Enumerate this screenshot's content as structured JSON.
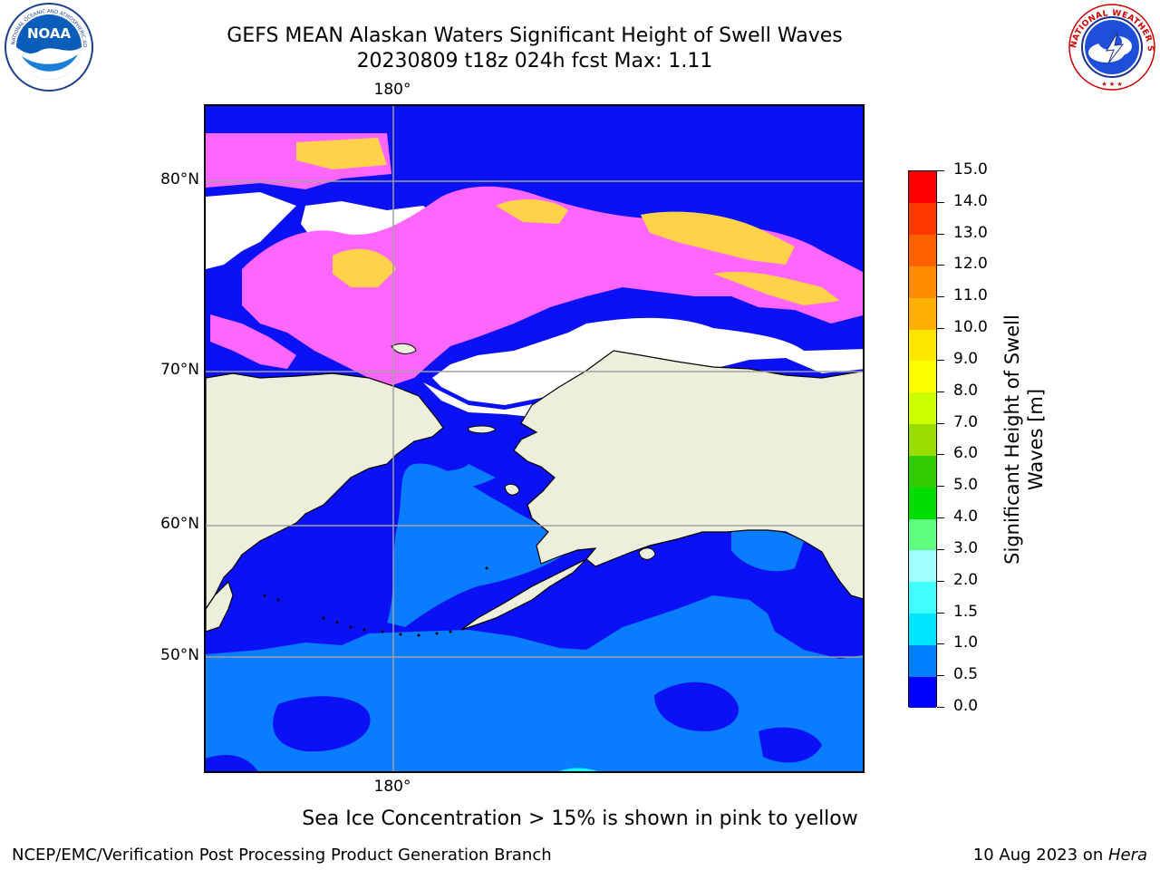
{
  "title": {
    "line1": "GEFS MEAN Alaskan Waters Significant Height of Swell Waves",
    "line2": "20230809 t18z 024h fcst   Max: 1.11"
  },
  "logos": {
    "left": {
      "text": "NOAA",
      "ring_text": "NATIONAL OCEANIC AND ATMOSPHERIC ADMINISTRATION · U.S. DEPARTMENT OF COMMERCE",
      "icon": "noaa-logo"
    },
    "right": {
      "ring_text": "NATIONAL WEATHER SERVICE",
      "icon": "nws-logo"
    }
  },
  "map": {
    "lon_labels": {
      "top": "180°",
      "bottom": "180°"
    },
    "lat_labels": [
      "80°N",
      "70°N",
      "60°N",
      "50°N"
    ],
    "colors": {
      "land": "#eeeedc",
      "ice_free_gap": "#ffffff",
      "swell_0_0_5": "#0a12f5",
      "swell_0_5_1": "#0a7cff",
      "swell_1_1_5": "#00ffff",
      "ice_pink": "#ff66ff",
      "ice_yellow": "#ffd24a"
    }
  },
  "colorbar": {
    "label_line1": "Significant Height of Swell",
    "label_line2": "Waves [m]",
    "ticks": [
      "0.0",
      "0.5",
      "1.0",
      "1.5",
      "2.0",
      "3.0",
      "4.0",
      "5.0",
      "6.0",
      "7.0",
      "8.0",
      "9.0",
      "10.0",
      "11.0",
      "12.0",
      "13.0",
      "14.0",
      "15.0"
    ],
    "colors": [
      "#0000ff",
      "#0080ff",
      "#00e5ff",
      "#40ffff",
      "#a0ffff",
      "#60ff80",
      "#00dd00",
      "#33cc00",
      "#99dd00",
      "#ccff00",
      "#ffff00",
      "#ffe600",
      "#ffb000",
      "#ff8c00",
      "#ff6000",
      "#ff3a00",
      "#ff0000"
    ]
  },
  "note": "Sea Ice Concentration > 15% is shown in pink to yellow",
  "footer": {
    "left": "NCEP/EMC/Verification Post Processing Product Generation Branch",
    "right_prefix": "10 Aug 2023 on ",
    "right_italic": "Hera"
  }
}
